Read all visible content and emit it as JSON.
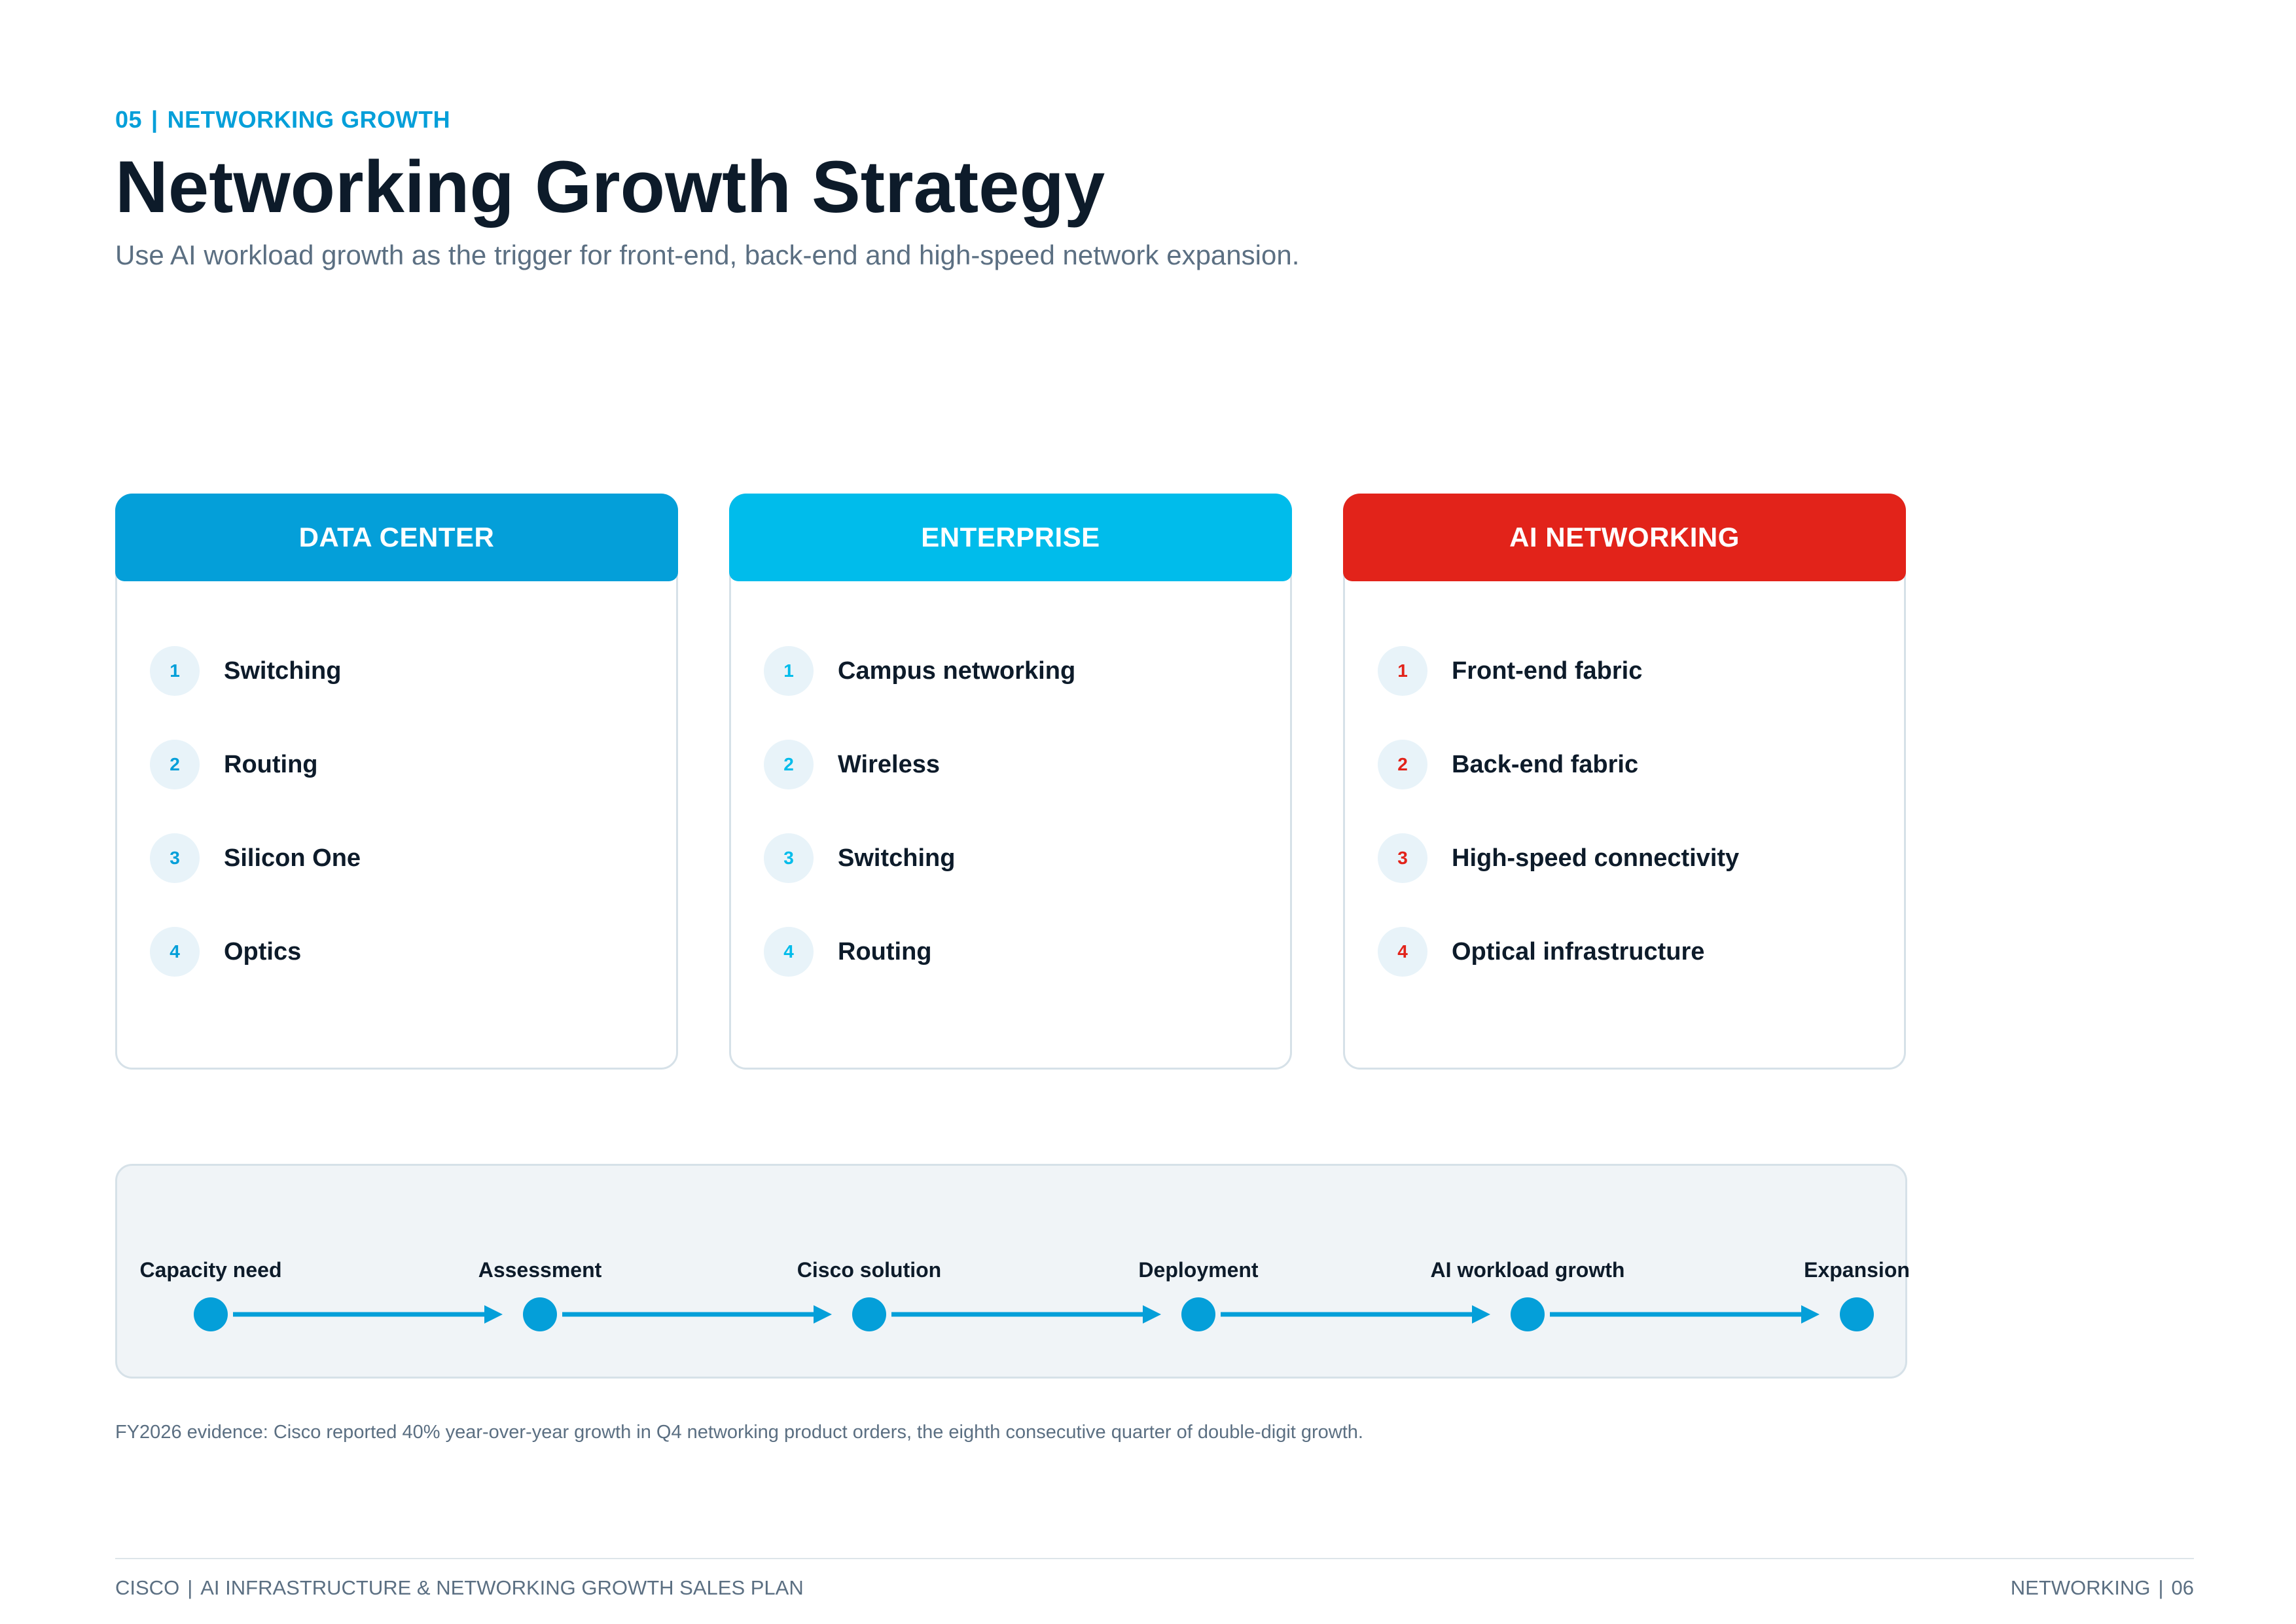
{
  "header": {
    "section_number": "05",
    "section_name": "NETWORKING GROWTH",
    "title": "Networking Growth Strategy",
    "subtitle": "Use AI workload growth as the trigger for front-end, back-end and high-speed network expansion."
  },
  "cards": [
    {
      "title": "DATA CENTER",
      "header_color": "#049fd9",
      "number_color": "#049fd9",
      "items": [
        {
          "num": "1",
          "label": "Switching"
        },
        {
          "num": "2",
          "label": "Routing"
        },
        {
          "num": "3",
          "label": "Silicon One"
        },
        {
          "num": "4",
          "label": "Optics"
        }
      ]
    },
    {
      "title": "ENTERPRISE",
      "header_color": "#00bceb",
      "number_color": "#00bceb",
      "items": [
        {
          "num": "1",
          "label": "Campus networking"
        },
        {
          "num": "2",
          "label": "Wireless"
        },
        {
          "num": "3",
          "label": "Switching"
        },
        {
          "num": "4",
          "label": "Routing"
        }
      ]
    },
    {
      "title": "AI NETWORKING",
      "header_color": "#e2231a",
      "number_color": "#e2231a",
      "items": [
        {
          "num": "1",
          "label": "Front-end fabric"
        },
        {
          "num": "2",
          "label": "Back-end fabric"
        },
        {
          "num": "3",
          "label": "High-speed connectivity"
        },
        {
          "num": "4",
          "label": "Optical infrastructure"
        }
      ]
    }
  ],
  "flow": {
    "accent_color": "#049fd9",
    "stages": [
      "Capacity need",
      "Assessment",
      "Cisco solution",
      "Deployment",
      "AI workload growth",
      "Expansion"
    ]
  },
  "evidence": "FY2026 evidence: Cisco reported 40% year-over-year growth in Q4 networking product orders, the eighth consecutive quarter of double-digit growth.",
  "footer": {
    "company": "CISCO",
    "document_title": "AI INFRASTRUCTURE & NETWORKING GROWTH SALES PLAN",
    "section": "NETWORKING",
    "page": "06"
  }
}
